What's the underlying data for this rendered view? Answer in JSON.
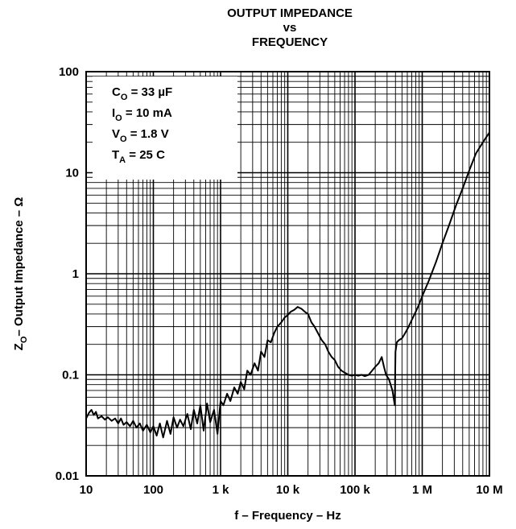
{
  "title_lines": [
    "OUTPUT IMPEDANCE",
    "vs",
    "FREQUENCY"
  ],
  "conditions": [
    {
      "main": "C",
      "sub": "O",
      "rest": " = 33 µF"
    },
    {
      "main": "I",
      "sub": "O",
      "rest": " = 10 mA"
    },
    {
      "main": "V",
      "sub": "O",
      "rest": " = 1.8 V"
    },
    {
      "main": "T",
      "sub": "A",
      "rest": " = 25 C"
    }
  ],
  "chart_data": {
    "type": "line",
    "title": "OUTPUT IMPEDANCE vs FREQUENCY",
    "xlabel": "f – Frequency – Hz",
    "ylabel": {
      "main": "Z",
      "sub": "O",
      "rest": "– Output Impedance – Ω"
    },
    "x_scale": "log",
    "y_scale": "log",
    "xlim": [
      10,
      10000000
    ],
    "ylim": [
      0.01,
      100
    ],
    "x_ticks": [
      10,
      100,
      1000,
      10000,
      100000,
      1000000,
      10000000
    ],
    "x_tick_labels": [
      "10",
      "100",
      "1 k",
      "10 k",
      "100 k",
      "1 M",
      "10 M"
    ],
    "y_ticks": [
      0.01,
      0.1,
      1,
      10,
      100
    ],
    "y_tick_labels": [
      "0.01",
      "0.1",
      "1",
      "10",
      "100"
    ],
    "grid": true,
    "series": [
      {
        "x": [
          10,
          11,
          12,
          13,
          14,
          15,
          17,
          19,
          21,
          24,
          27,
          30,
          33,
          36,
          40,
          45,
          50,
          56,
          63,
          70,
          80,
          90,
          100,
          112,
          125,
          140,
          160,
          180,
          200,
          225,
          250,
          280,
          320,
          360,
          400,
          450,
          500,
          560,
          630,
          700,
          800,
          900,
          1000,
          1100,
          1250,
          1400,
          1600,
          1800,
          2000,
          2250,
          2500,
          2800,
          3200,
          3600,
          4000,
          4500,
          5000,
          5600,
          6300,
          7000,
          8000,
          9000,
          10000,
          11000,
          12500,
          14000,
          16000,
          18000,
          20000,
          22500,
          25000,
          28000,
          32000,
          36000,
          40000,
          45000,
          50000,
          56000,
          63000,
          70000,
          80000,
          90000,
          100000,
          112000,
          125000,
          140000,
          160000,
          180000,
          200000,
          225000,
          250000,
          270000,
          290000,
          320000,
          360000,
          390000,
          400000,
          420000,
          450000,
          500000,
          560000,
          630000,
          700000,
          800000,
          900000,
          1000000,
          1250000,
          1600000,
          2000000,
          2500000,
          3200000,
          4000000,
          5000000,
          6300000,
          8000000,
          10000000
        ],
        "y": [
          0.037,
          0.042,
          0.045,
          0.04,
          0.043,
          0.037,
          0.039,
          0.036,
          0.038,
          0.035,
          0.037,
          0.033,
          0.037,
          0.032,
          0.034,
          0.031,
          0.035,
          0.03,
          0.033,
          0.028,
          0.032,
          0.027,
          0.031,
          0.025,
          0.033,
          0.024,
          0.035,
          0.026,
          0.038,
          0.03,
          0.036,
          0.031,
          0.041,
          0.029,
          0.045,
          0.033,
          0.05,
          0.028,
          0.052,
          0.034,
          0.045,
          0.026,
          0.055,
          0.05,
          0.065,
          0.055,
          0.075,
          0.065,
          0.085,
          0.072,
          0.11,
          0.1,
          0.13,
          0.11,
          0.17,
          0.15,
          0.22,
          0.21,
          0.26,
          0.3,
          0.33,
          0.37,
          0.39,
          0.42,
          0.44,
          0.47,
          0.45,
          0.42,
          0.4,
          0.33,
          0.3,
          0.26,
          0.22,
          0.2,
          0.17,
          0.15,
          0.14,
          0.12,
          0.11,
          0.105,
          0.1,
          0.098,
          0.1,
          0.098,
          0.1,
          0.097,
          0.1,
          0.11,
          0.12,
          0.13,
          0.15,
          0.12,
          0.1,
          0.09,
          0.07,
          0.05,
          0.17,
          0.21,
          0.22,
          0.23,
          0.26,
          0.3,
          0.35,
          0.42,
          0.5,
          0.6,
          0.85,
          1.3,
          2.0,
          3.0,
          4.8,
          7.0,
          10.5,
          15.5,
          20.0,
          25.0
        ]
      }
    ]
  }
}
